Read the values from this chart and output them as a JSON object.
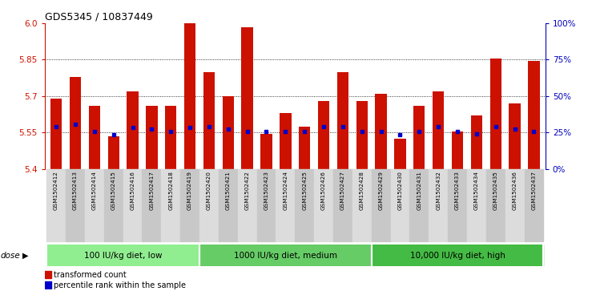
{
  "title": "GDS5345 / 10837449",
  "samples": [
    "GSM1502412",
    "GSM1502413",
    "GSM1502414",
    "GSM1502415",
    "GSM1502416",
    "GSM1502417",
    "GSM1502418",
    "GSM1502419",
    "GSM1502420",
    "GSM1502421",
    "GSM1502422",
    "GSM1502423",
    "GSM1502424",
    "GSM1502425",
    "GSM1502426",
    "GSM1502427",
    "GSM1502428",
    "GSM1502429",
    "GSM1502430",
    "GSM1502431",
    "GSM1502432",
    "GSM1502433",
    "GSM1502434",
    "GSM1502435",
    "GSM1502436",
    "GSM1502437"
  ],
  "bar_tops": [
    5.69,
    5.78,
    5.66,
    5.535,
    5.72,
    5.66,
    5.66,
    6.0,
    5.8,
    5.7,
    5.985,
    5.545,
    5.63,
    5.575,
    5.68,
    5.8,
    5.68,
    5.71,
    5.525,
    5.66,
    5.72,
    5.555,
    5.62,
    5.855,
    5.67,
    5.845
  ],
  "bar_base": 5.4,
  "blue_dots": [
    5.575,
    5.585,
    5.555,
    5.54,
    5.57,
    5.565,
    5.555,
    5.57,
    5.575,
    5.565,
    5.555,
    5.555,
    5.555,
    5.555,
    5.575,
    5.575,
    5.555,
    5.555,
    5.54,
    5.555,
    5.575,
    5.555,
    5.545,
    5.575,
    5.565,
    5.555
  ],
  "ylim": [
    5.4,
    6.0
  ],
  "yticks_left": [
    5.4,
    5.55,
    5.7,
    5.85,
    6.0
  ],
  "yticks_right_vals": [
    0,
    25,
    50,
    75,
    100
  ],
  "yticks_right_pos": [
    5.4,
    5.55,
    5.7,
    5.85,
    6.0
  ],
  "hlines": [
    5.55,
    5.7,
    5.85
  ],
  "bar_color": "#CC1100",
  "dot_color": "#0000CC",
  "groups": [
    {
      "label": "100 IU/kg diet, low",
      "start": 0,
      "end": 8,
      "color": "#90EE90"
    },
    {
      "label": "1000 IU/kg diet, medium",
      "start": 8,
      "end": 17,
      "color": "#66CC66"
    },
    {
      "label": "10,000 IU/kg diet, high",
      "start": 17,
      "end": 26,
      "color": "#44BB44"
    }
  ],
  "dose_label": "dose",
  "legend_items": [
    {
      "label": "transformed count",
      "color": "#CC1100"
    },
    {
      "label": "percentile rank within the sample",
      "color": "#0000CC"
    }
  ],
  "tick_label_color_left": "#CC1100",
  "tick_label_color_right": "#0000BB"
}
